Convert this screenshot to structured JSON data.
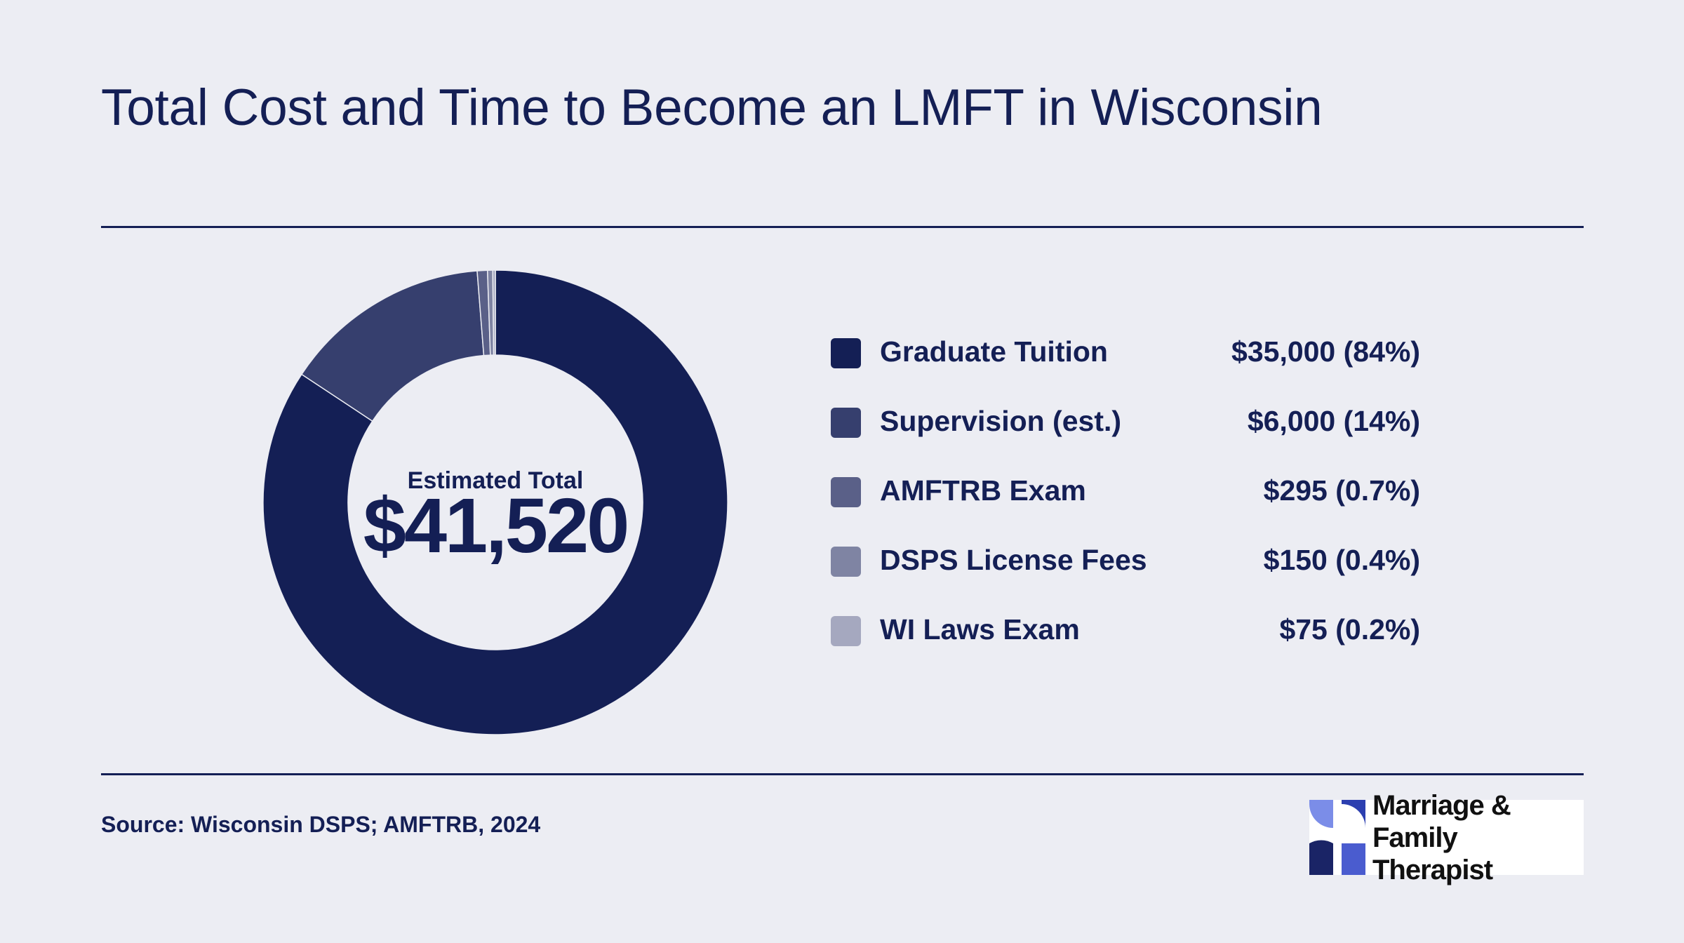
{
  "title": "Total Cost and Time to Become an LMFT in Wisconsin",
  "center": {
    "label": "Estimated Total",
    "value": "$41,520"
  },
  "chart_data": {
    "type": "pie",
    "subtype": "donut",
    "categories": [
      "Graduate Tuition",
      "Supervision (est.)",
      "AMFTRB Exam",
      "DSPS License Fees",
      "WI Laws Exam"
    ],
    "values": [
      35000,
      6000,
      295,
      150,
      75
    ],
    "value_labels": [
      "$35,000 (84%)",
      "$6,000 (14%)",
      "$295 (0.7%)",
      "$150 (0.4%)",
      "$75 (0.2%)"
    ],
    "colors": [
      "#141f55",
      "#363f6e",
      "#5a6088",
      "#7f84a3",
      "#a5a8bf"
    ],
    "total": 41520,
    "legend_position": "right"
  },
  "source": "Source: Wisconsin DSPS; AMFTRB, 2024",
  "logo": {
    "line1": "Marriage & Family",
    "line2": "Therapist"
  },
  "colors": {
    "background": "#ecedf3",
    "text": "#141f55",
    "rule": "#141f55"
  }
}
